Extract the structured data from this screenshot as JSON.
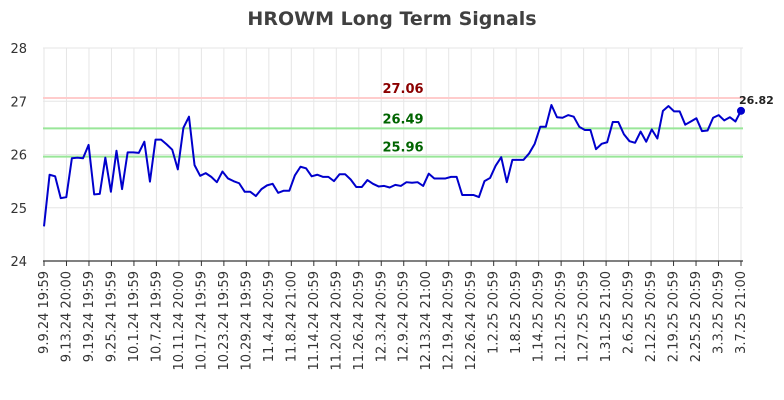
{
  "chart_data": {
    "type": "line",
    "title": "HROWM Long Term Signals",
    "xlabel": "",
    "ylabel": "",
    "ylim": [
      24,
      28
    ],
    "yticks": [
      24,
      25,
      26,
      27,
      28
    ],
    "grid": true,
    "legend": "none",
    "line_color": "#0000cc",
    "xtick_labels": [
      "9.9.24 19:59",
      "9.13.24 20:00",
      "9.19.24 19:59",
      "9.25.24 19:59",
      "10.1.24 19:59",
      "10.7.24 19:59",
      "10.11.24 20:00",
      "10.17.24 19:59",
      "10.23.24 19:59",
      "10.29.24 19:59",
      "11.4.24 20:59",
      "11.8.24 21:00",
      "11.14.24 20:59",
      "11.20.24 20:59",
      "11.26.24 20:59",
      "12.3.24 20:59",
      "12.9.24 20:59",
      "12.13.24 21:00",
      "12.19.24 20:59",
      "12.26.24 20:59",
      "1.2.25 20:59",
      "1.8.25 20:59",
      "1.14.25 20:59",
      "1.21.25 20:59",
      "1.27.25 20:59",
      "1.31.25 21:00",
      "2.6.25 20:59",
      "2.12.25 20:59",
      "2.19.25 20:59",
      "2.25.25 20:59",
      "3.3.25 20:59",
      "3.7.25 21:00"
    ],
    "values": [
      24.65,
      25.62,
      25.59,
      25.18,
      25.2,
      25.93,
      25.94,
      25.93,
      26.18,
      25.25,
      25.26,
      25.94,
      25.3,
      26.07,
      25.35,
      26.04,
      26.04,
      26.03,
      26.24,
      25.49,
      26.28,
      26.28,
      26.19,
      26.09,
      25.72,
      26.5,
      26.71,
      25.8,
      25.6,
      25.65,
      25.58,
      25.48,
      25.68,
      25.55,
      25.5,
      25.46,
      25.3,
      25.3,
      25.22,
      25.35,
      25.42,
      25.45,
      25.28,
      25.32,
      25.32,
      25.61,
      25.77,
      25.74,
      25.59,
      25.62,
      25.58,
      25.58,
      25.5,
      25.63,
      25.63,
      25.53,
      25.39,
      25.39,
      25.52,
      25.45,
      25.4,
      25.41,
      25.38,
      25.43,
      25.41,
      25.48,
      25.47,
      25.48,
      25.41,
      25.64,
      25.55,
      25.55,
      25.55,
      25.58,
      25.58,
      25.24,
      25.24,
      25.24,
      25.2,
      25.5,
      25.56,
      25.79,
      25.95,
      25.48,
      25.9,
      25.9,
      25.9,
      26.02,
      26.2,
      26.52,
      26.52,
      26.93,
      26.7,
      26.69,
      26.74,
      26.71,
      26.52,
      26.46,
      26.46,
      26.1,
      26.2,
      26.23,
      26.61,
      26.61,
      26.38,
      26.25,
      26.22,
      26.43,
      26.24,
      26.47,
      26.3,
      26.82,
      26.91,
      26.81,
      26.81,
      26.56,
      26.62,
      26.68,
      26.44,
      26.45,
      26.69,
      26.74,
      26.64,
      26.7,
      26.62,
      26.82
    ],
    "signals": [
      {
        "label": "27.06",
        "value": 27.06,
        "line_color": "#ffcccc",
        "text_color": "#8b0000"
      },
      {
        "label": "26.49",
        "value": 26.49,
        "line_color": "#99e699",
        "text_color": "#006400"
      },
      {
        "label": "25.96",
        "value": 25.96,
        "line_color": "#99e699",
        "text_color": "#006400"
      }
    ],
    "last_value_label": "26.82"
  }
}
